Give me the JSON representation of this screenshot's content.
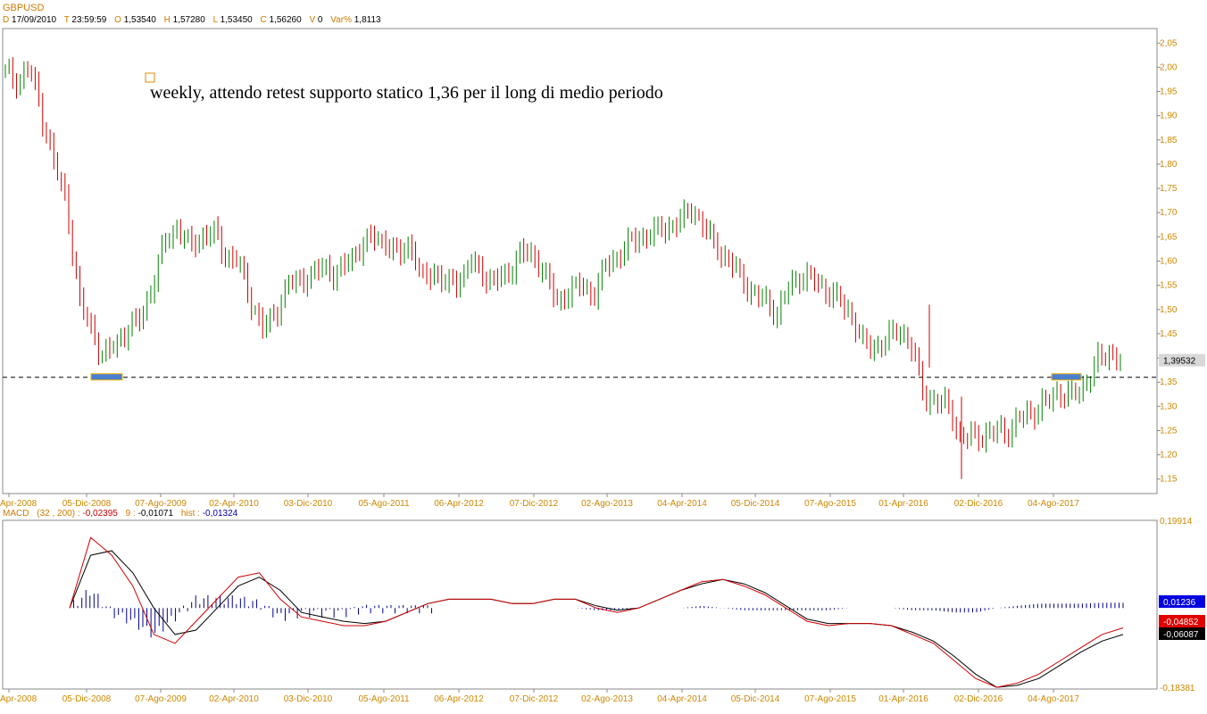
{
  "header": {
    "symbol": "GBPUSD",
    "d_label": "D",
    "date": "17/09/2010",
    "t_label": "T",
    "time": "23:59:59",
    "o_label": "O",
    "open": "1,53540",
    "h_label": "H",
    "high": "1,57280",
    "l_label": "L",
    "low": "1,53450",
    "c_label": "C",
    "close": "1,56260",
    "v_label": "V",
    "volume": "0",
    "var_label": "Var%",
    "var": "1,8113"
  },
  "annotation": {
    "text": "weekly, attendo retest supporto statico 1,36 per il long di medio periodo"
  },
  "price_label": "1,39532",
  "macd_header": {
    "name": "MACD",
    "params": "(32 , 200) :",
    "macd": "-0,02395",
    "signal_label": "9 :",
    "signal": "-0,01071",
    "hist_label": "hist :",
    "hist": "-0,01324"
  },
  "macd_labels": {
    "top": "0,19914",
    "bottom": "-0,18381",
    "hist": "0,01236",
    "macd": "-0,04852",
    "signal": "-0,06087"
  },
  "colors": {
    "up": "#008000",
    "down": "#cc0000",
    "axis_text": "#cc8800",
    "hist": "#00008b",
    "macd": "#cc0000",
    "signal": "#000000"
  },
  "chart_data": [
    {
      "type": "candlestick",
      "title": "GBPUSD",
      "subtitle": "weekly, attendo retest supporto statico 1,36 per il long di medio periodo",
      "x_tick_labels": [
        "Apr-2008",
        "05-Dic-2008",
        "07-Ago-2009",
        "02-Apr-2010",
        "03-Dic-2010",
        "05-Ago-2011",
        "06-Apr-2012",
        "07-Dic-2012",
        "02-Ago-2013",
        "04-Apr-2014",
        "05-Dic-2014",
        "07-Ago-2015",
        "01-Apr-2016",
        "02-Dic-2016",
        "04-Ago-2017"
      ],
      "y_tick_labels": [
        "1,15",
        "1,20",
        "1,25",
        "1,30",
        "1,35",
        "1,40",
        "1,45",
        "1,50",
        "1,55",
        "1,60",
        "1,65",
        "1,70",
        "1,75",
        "1,80",
        "1,85",
        "1,90",
        "1,95",
        "2,00",
        "2,05"
      ],
      "ylim": [
        1.12,
        2.08
      ],
      "support_level": 1.36,
      "last_price": 1.39532,
      "highlight_zones": [
        {
          "x": [
            "05-Dic-2008",
            "mid-Jan-2009"
          ],
          "y": 1.36
        },
        {
          "x": [
            "May-2017",
            "Jul-2017"
          ],
          "y": 1.36
        }
      ],
      "series": [
        {
          "values": [
            [
              "Apr-2008",
              1.99
            ],
            [
              "May-2008",
              1.97
            ],
            [
              "Jul-2008",
              2.0
            ],
            [
              "Aug-2008",
              1.9
            ],
            [
              "Sep-2008",
              1.8
            ],
            [
              "Oct-2008",
              1.72
            ],
            [
              "Nov-2008",
              1.52
            ],
            [
              "05-Dic-2008",
              1.46
            ],
            [
              "Jan-2009",
              1.4
            ],
            [
              "Feb-2009",
              1.43
            ],
            [
              "Mar-2009",
              1.46
            ],
            [
              "Apr-2009",
              1.48
            ],
            [
              "May-2009",
              1.55
            ],
            [
              "Jun-2009",
              1.64
            ],
            [
              "07-Ago-2009",
              1.67
            ],
            [
              "Sep-2009",
              1.63
            ],
            [
              "Oct-2009",
              1.65
            ],
            [
              "Nov-2009",
              1.66
            ],
            [
              "Dec-2009",
              1.61
            ],
            [
              "Jan-2010",
              1.6
            ],
            [
              "02-Apr-2010",
              1.52
            ],
            [
              "May-2010",
              1.46
            ],
            [
              "Jun-2010",
              1.49
            ],
            [
              "Jul-2010",
              1.55
            ],
            [
              "Aug-2010",
              1.56
            ],
            [
              "Sep-2010",
              1.57
            ],
            [
              "Oct-2010",
              1.59
            ],
            [
              "03-Dic-2010",
              1.57
            ],
            [
              "Jan-2011",
              1.6
            ],
            [
              "Mar-2011",
              1.63
            ],
            [
              "Apr-2011",
              1.65
            ],
            [
              "May-2011",
              1.64
            ],
            [
              "Jun-2011",
              1.61
            ],
            [
              "05-Ago-2011",
              1.64
            ],
            [
              "Sep-2011",
              1.56
            ],
            [
              "Oct-2011",
              1.58
            ],
            [
              "Dec-2011",
              1.55
            ],
            [
              "Jan-2012",
              1.56
            ],
            [
              "06-Apr-2012",
              1.6
            ],
            [
              "May-2012",
              1.57
            ],
            [
              "Jun-2012",
              1.56
            ],
            [
              "Aug-2012",
              1.57
            ],
            [
              "Sep-2012",
              1.62
            ],
            [
              "07-Dic-2012",
              1.61
            ],
            [
              "Jan-2013",
              1.58
            ],
            [
              "Mar-2013",
              1.51
            ],
            [
              "May-2013",
              1.54
            ],
            [
              "Jun-2013",
              1.55
            ],
            [
              "02-Ago-2013",
              1.53
            ],
            [
              "Sep-2013",
              1.59
            ],
            [
              "Oct-2013",
              1.61
            ],
            [
              "Dec-2013",
              1.64
            ],
            [
              "Jan-2014",
              1.65
            ],
            [
              "Feb-2014",
              1.66
            ],
            [
              "04-Apr-2014",
              1.67
            ],
            [
              "May-2014",
              1.68
            ],
            [
              "Jul-2014",
              1.71
            ],
            [
              "Aug-2014",
              1.67
            ],
            [
              "Sep-2014",
              1.63
            ],
            [
              "Oct-2014",
              1.6
            ],
            [
              "05-Dic-2014",
              1.57
            ],
            [
              "Jan-2015",
              1.53
            ],
            [
              "Feb-2015",
              1.52
            ],
            [
              "Apr-2015",
              1.49
            ],
            [
              "May-2015",
              1.55
            ],
            [
              "Jun-2015",
              1.57
            ],
            [
              "07-Ago-2015",
              1.56
            ],
            [
              "Sep-2015",
              1.54
            ],
            [
              "Oct-2015",
              1.52
            ],
            [
              "Dec-2015",
              1.49
            ],
            [
              "Jan-2016",
              1.43
            ],
            [
              "Feb-2016",
              1.42
            ],
            [
              "01-Apr-2016",
              1.44
            ],
            [
              "May-2016",
              1.46
            ],
            [
              "Jun-2016",
              1.42
            ],
            [
              "Jul-2016",
              1.32
            ],
            [
              "Aug-2016",
              1.31
            ],
            [
              "Sep-2016",
              1.3
            ],
            [
              "Oct-2016",
              1.23
            ],
            [
              "02-Dic-2016",
              1.24
            ],
            [
              "Jan-2017",
              1.24
            ],
            [
              "Feb-2017",
              1.25
            ],
            [
              "Mar-2017",
              1.25
            ],
            [
              "Apr-2017",
              1.28
            ],
            [
              "Jun-2017",
              1.29
            ],
            [
              "04-Ago-2017",
              1.31
            ],
            [
              "Sep-2017",
              1.33
            ],
            [
              "Oct-2017",
              1.32
            ],
            [
              "Dec-2017",
              1.34
            ],
            [
              "Jan-2018",
              1.39
            ],
            [
              "Feb-2018",
              1.41
            ],
            [
              "Mar-2018",
              1.4
            ]
          ]
        }
      ]
    },
    {
      "type": "line",
      "title": "MACD",
      "subtitle": "(32 , 200)",
      "ylim": [
        -0.18381,
        0.19914
      ],
      "series": [
        {
          "name": "MACD",
          "values": [
            0.0,
            0.16,
            0.12,
            0.05,
            -0.06,
            -0.08,
            -0.03,
            0.02,
            0.07,
            0.08,
            0.02,
            -0.02,
            -0.03,
            -0.04,
            -0.04,
            -0.03,
            -0.01,
            0.01,
            0.02,
            0.02,
            0.02,
            0.01,
            0.01,
            0.02,
            0.02,
            0.0,
            -0.01,
            0.0,
            0.02,
            0.04,
            0.06,
            0.065,
            0.05,
            0.03,
            0.0,
            -0.03,
            -0.04,
            -0.035,
            -0.035,
            -0.04,
            -0.06,
            -0.08,
            -0.12,
            -0.16,
            -0.18,
            -0.17,
            -0.15,
            -0.12,
            -0.09,
            -0.06,
            -0.045
          ]
        },
        {
          "name": "Signal",
          "values": [
            0.0,
            0.12,
            0.13,
            0.08,
            0.0,
            -0.06,
            -0.05,
            0.0,
            0.05,
            0.07,
            0.04,
            -0.01,
            -0.02,
            -0.03,
            -0.035,
            -0.03,
            -0.01,
            0.01,
            0.02,
            0.02,
            0.02,
            0.01,
            0.01,
            0.02,
            0.02,
            0.005,
            -0.005,
            0.0,
            0.02,
            0.04,
            0.055,
            0.065,
            0.055,
            0.035,
            0.005,
            -0.025,
            -0.035,
            -0.035,
            -0.035,
            -0.04,
            -0.055,
            -0.075,
            -0.11,
            -0.15,
            -0.18,
            -0.175,
            -0.16,
            -0.13,
            -0.1,
            -0.075,
            -0.06
          ]
        },
        {
          "name": "hist",
          "values": [
            0.0,
            0.04,
            -0.01,
            -0.03,
            -0.06,
            -0.02,
            0.02,
            0.02,
            0.02,
            0.01,
            -0.02,
            -0.01,
            -0.01,
            -0.01,
            0.0,
            0.0,
            0.0,
            0.0,
            0.0,
            0.0,
            0.0,
            0.0,
            0.0,
            0.0,
            0.0,
            -0.005,
            -0.005,
            0.0,
            0.0,
            0.0,
            0.005,
            0.0,
            -0.005,
            -0.005,
            -0.005,
            -0.005,
            -0.005,
            0.0,
            0.0,
            0.0,
            -0.005,
            -0.005,
            -0.01,
            -0.01,
            0.0,
            0.005,
            0.01,
            0.01,
            0.01,
            0.012,
            0.012
          ]
        }
      ]
    }
  ]
}
